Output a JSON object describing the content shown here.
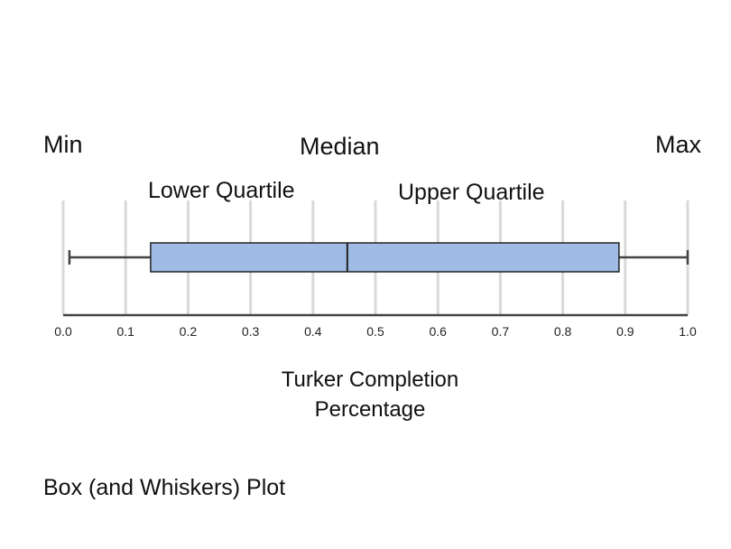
{
  "annotations": {
    "min": "Min",
    "median": "Median",
    "max": "Max",
    "lower_quartile": "Lower Quartile",
    "upper_quartile": "Upper Quartile"
  },
  "caption": "Box (and Whiskers) Plot",
  "chart_data": {
    "type": "box",
    "xlabel_lines": [
      "Turker Completion",
      "Percentage"
    ],
    "xlim": [
      0.0,
      1.0
    ],
    "ticks": [
      "0.0",
      "0.1",
      "0.2",
      "0.3",
      "0.4",
      "0.5",
      "0.6",
      "0.7",
      "0.8",
      "0.9",
      "1.0"
    ],
    "grid": true,
    "min": 0.01,
    "q1": 0.14,
    "median": 0.455,
    "q3": 0.89,
    "max": 1.0,
    "box_color": "#a0bce6",
    "line_color": "#444444",
    "grid_color": "#d9d9d9"
  }
}
